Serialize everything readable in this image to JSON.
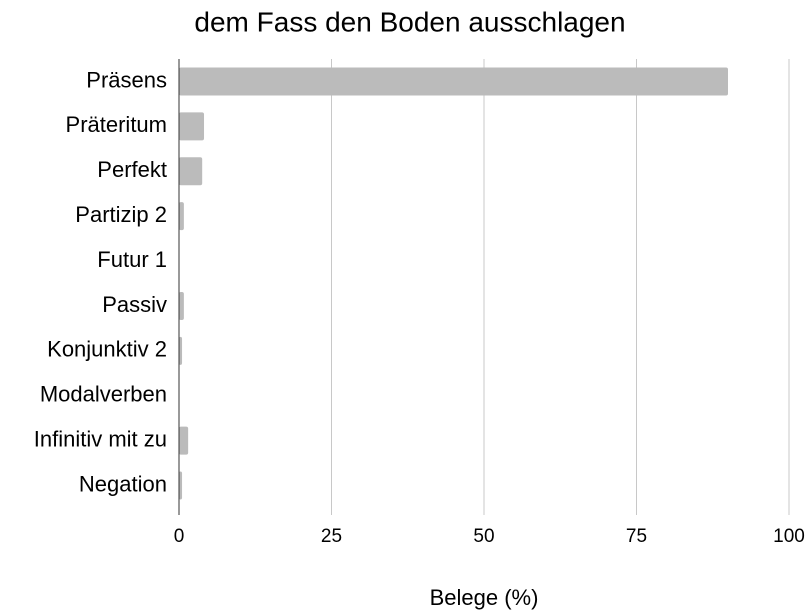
{
  "chart_data": {
    "type": "barh",
    "title": "dem Fass den Boden ausschlagen",
    "categories": [
      "Präsens",
      "Präteritum",
      "Perfekt",
      "Partizip 2",
      "Futur 1",
      "Passiv",
      "Konjunktiv 2",
      "Modalverben",
      "Infinitiv mit zu",
      "Negation"
    ],
    "values": [
      90,
      4.1,
      3.8,
      0.8,
      0,
      0.8,
      0.5,
      0,
      1.5,
      0.5
    ],
    "color": "#bbbbbb",
    "xlim": [
      0,
      100
    ],
    "xticks": [
      0,
      25,
      50,
      75,
      100
    ],
    "grid": true,
    "xlabel": "Belege (%)"
  }
}
